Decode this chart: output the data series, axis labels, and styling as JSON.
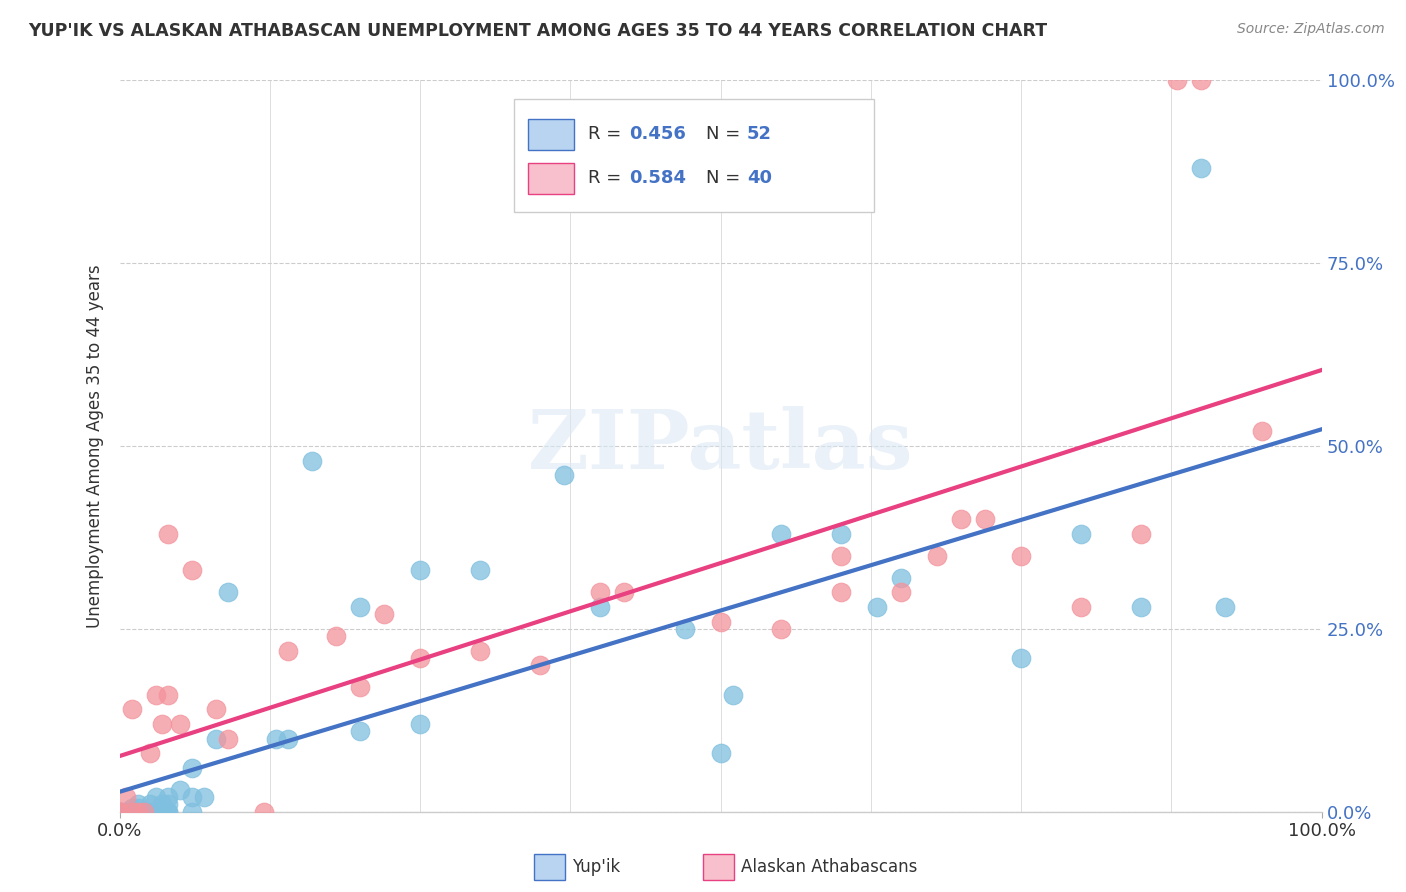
{
  "title": "YUP'IK VS ALASKAN ATHABASCAN UNEMPLOYMENT AMONG AGES 35 TO 44 YEARS CORRELATION CHART",
  "source": "Source: ZipAtlas.com",
  "ylabel": "Unemployment Among Ages 35 to 44 years",
  "xlim": [
    0.0,
    1.0
  ],
  "ylim": [
    0.0,
    1.0
  ],
  "ytick_labels": [
    "0.0%",
    "25.0%",
    "50.0%",
    "75.0%",
    "100.0%"
  ],
  "ytick_values": [
    0.0,
    0.25,
    0.5,
    0.75,
    1.0
  ],
  "watermark": "ZIPatlas",
  "series1_label": "Yup'ik",
  "series2_label": "Alaskan Athabascans",
  "series1_color": "#7fbfdf",
  "series2_color": "#f4939c",
  "series1_edge": "#7fbfdf",
  "series2_edge": "#f4939c",
  "series1_line_color": "#4472c4",
  "series2_line_color": "#e84080",
  "series1_R": 0.456,
  "series1_N": 52,
  "series2_R": 0.584,
  "series2_N": 40,
  "legend_blue_fill": "#b8d4f0",
  "legend_pink_fill": "#f8c0cc",
  "legend_blue_edge": "#4472c4",
  "legend_pink_edge": "#e84080",
  "legend_text_color": "#4472c4",
  "tick_label_color": "#4472c4",
  "yupik_x": [
    0.0,
    0.0,
    0.0,
    0.005,
    0.005,
    0.005,
    0.01,
    0.01,
    0.01,
    0.015,
    0.015,
    0.02,
    0.02,
    0.025,
    0.025,
    0.03,
    0.03,
    0.03,
    0.035,
    0.04,
    0.04,
    0.04,
    0.04,
    0.05,
    0.06,
    0.06,
    0.06,
    0.07,
    0.08,
    0.09,
    0.13,
    0.14,
    0.16,
    0.2,
    0.2,
    0.25,
    0.25,
    0.3,
    0.37,
    0.4,
    0.47,
    0.5,
    0.51,
    0.55,
    0.6,
    0.63,
    0.65,
    0.75,
    0.8,
    0.85,
    0.9,
    0.92
  ],
  "yupik_y": [
    0.0,
    0.0,
    0.0,
    0.0,
    0.0,
    0.0,
    0.0,
    0.0,
    0.005,
    0.005,
    0.01,
    0.0,
    0.0,
    0.0,
    0.01,
    0.0,
    0.0,
    0.02,
    0.01,
    0.0,
    0.0,
    0.02,
    0.01,
    0.03,
    0.0,
    0.02,
    0.06,
    0.02,
    0.1,
    0.3,
    0.1,
    0.1,
    0.48,
    0.11,
    0.28,
    0.33,
    0.12,
    0.33,
    0.46,
    0.28,
    0.25,
    0.08,
    0.16,
    0.38,
    0.38,
    0.28,
    0.32,
    0.21,
    0.38,
    0.28,
    0.88,
    0.28
  ],
  "athabascan_x": [
    0.0,
    0.0,
    0.005,
    0.01,
    0.01,
    0.015,
    0.02,
    0.025,
    0.03,
    0.035,
    0.04,
    0.04,
    0.05,
    0.06,
    0.08,
    0.09,
    0.12,
    0.14,
    0.18,
    0.2,
    0.22,
    0.25,
    0.3,
    0.35,
    0.4,
    0.42,
    0.5,
    0.55,
    0.6,
    0.6,
    0.65,
    0.68,
    0.7,
    0.72,
    0.75,
    0.8,
    0.85,
    0.88,
    0.9,
    0.95
  ],
  "athabascan_y": [
    0.0,
    0.0,
    0.02,
    0.14,
    0.0,
    0.0,
    0.0,
    0.08,
    0.16,
    0.12,
    0.16,
    0.38,
    0.12,
    0.33,
    0.14,
    0.1,
    0.0,
    0.22,
    0.24,
    0.17,
    0.27,
    0.21,
    0.22,
    0.2,
    0.3,
    0.3,
    0.26,
    0.25,
    0.3,
    0.35,
    0.3,
    0.35,
    0.4,
    0.4,
    0.35,
    0.28,
    0.38,
    1.0,
    1.0,
    0.52
  ]
}
